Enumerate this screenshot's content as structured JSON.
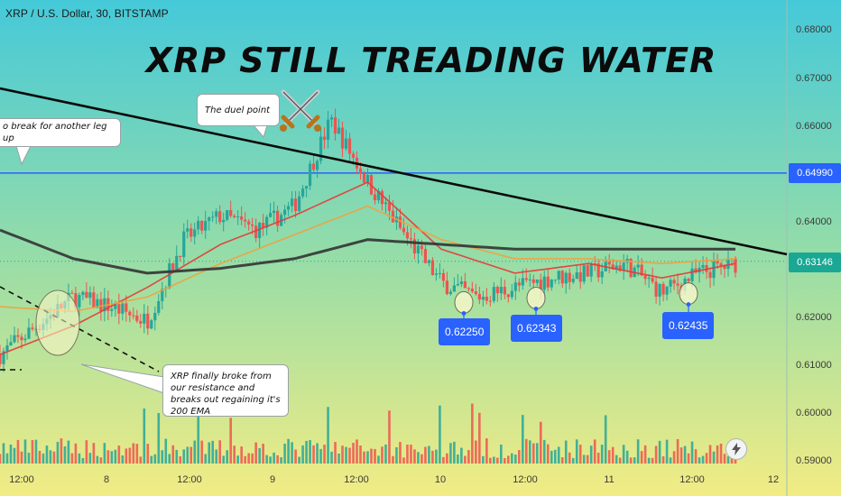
{
  "header": {
    "symbol": "XRP / U.S. Dollar, 30, BITSTAMP",
    "headline": "XRP STILL TREADING WATER"
  },
  "icons": {
    "droplet": "water-drop-icon",
    "swords": "crossed-swords-icon",
    "bolt": "lightning-icon"
  },
  "colors": {
    "background_top": "#45c9d9",
    "background_bottom": "#f2ec84",
    "up_candle": "#26a69a",
    "down_candle": "#ef5350",
    "ema_fast": "#e53935",
    "ema_slow": "#f2a03d",
    "ema_200": "#333333",
    "resistance_line": "#2962ff",
    "trendline": "#0a0a0a",
    "label_blue": "#2962ff",
    "price_tag_green": "#1aa894"
  },
  "annotations": {
    "duel_point": "The duel point",
    "break_leg": "o break for another leg up",
    "breakout": "XRP finally broke from our resistance and breaks out regaining it's 200 EMA"
  },
  "price_labels": [
    "0.62250",
    "0.62343",
    "0.62435"
  ],
  "chart_data": {
    "type": "line",
    "ylim": [
      0.59,
      0.68
    ],
    "y_ticks": [
      "0.68000",
      "0.67000",
      "0.66000",
      "0.64000",
      "0.62000",
      "0.61000",
      "0.60000",
      "0.59000"
    ],
    "x_ticks": [
      "12:00",
      "8",
      "12:00",
      "9",
      "12:00",
      "10",
      "12:00",
      "11",
      "12:00",
      "12"
    ],
    "resistance_level": "0.64990",
    "current_price": "0.63146",
    "lows_marked": [
      0.6225,
      0.62343,
      0.62435
    ],
    "series": [
      {
        "x": [
          0,
          1,
          2,
          3,
          4,
          5,
          6,
          7,
          8,
          9,
          10,
          11,
          12,
          13,
          14,
          15,
          16,
          17,
          18,
          19,
          20
        ],
        "values": [
          0.612,
          0.618,
          0.624,
          0.622,
          0.619,
          0.636,
          0.641,
          0.638,
          0.643,
          0.661,
          0.648,
          0.637,
          0.627,
          0.624,
          0.626,
          0.628,
          0.629,
          0.631,
          0.625,
          0.629,
          0.631
        ]
      },
      {
        "x": [
          0,
          2,
          4,
          6,
          8,
          10,
          12,
          14,
          16,
          18,
          20
        ],
        "values": [
          0.612,
          0.618,
          0.626,
          0.635,
          0.641,
          0.648,
          0.634,
          0.629,
          0.631,
          0.628,
          0.631
        ]
      },
      {
        "x": [
          0,
          2,
          4,
          6,
          8,
          10,
          12,
          14,
          16,
          18,
          20
        ],
        "values": [
          0.622,
          0.621,
          0.624,
          0.631,
          0.637,
          0.643,
          0.636,
          0.632,
          0.632,
          0.631,
          0.632
        ]
      },
      {
        "x": [
          0,
          2,
          4,
          6,
          8,
          10,
          12,
          14,
          16,
          18,
          20
        ],
        "values": [
          0.638,
          0.632,
          0.629,
          0.63,
          0.632,
          0.636,
          0.635,
          0.634,
          0.634,
          0.634,
          0.634
        ]
      }
    ]
  }
}
